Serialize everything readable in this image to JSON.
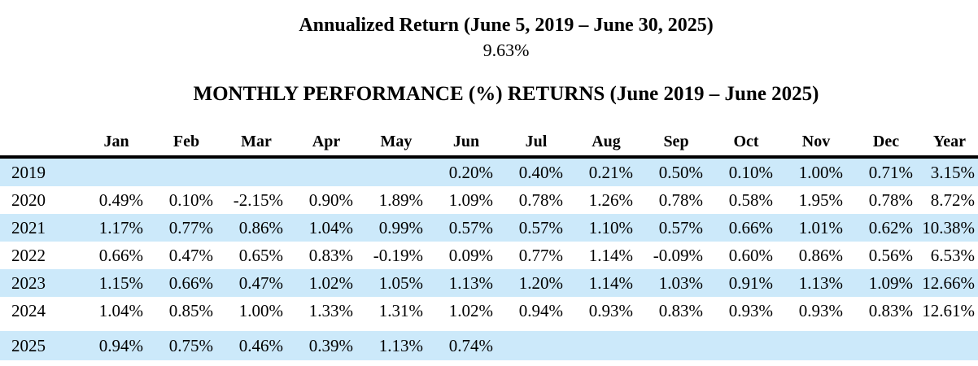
{
  "header": {
    "annualized_title": "Annualized Return (June 5, 2019 – June 30, 2025)",
    "annualized_value": "9.63%",
    "table_title": "MONTHLY PERFORMANCE (%) RETURNS (June 2019 – June 2025)"
  },
  "colors": {
    "row_highlight": "#cce9fa",
    "header_rule": "#000000"
  },
  "chart_data": {
    "type": "table",
    "columns": [
      "Jan",
      "Feb",
      "Mar",
      "Apr",
      "May",
      "Jun",
      "Jul",
      "Aug",
      "Sep",
      "Oct",
      "Nov",
      "Dec",
      "Year"
    ],
    "rows": [
      {
        "year": "2019",
        "values": [
          "",
          "",
          "",
          "",
          "",
          "0.20%",
          "0.40%",
          "0.21%",
          "0.50%",
          "0.10%",
          "1.00%",
          "0.71%",
          "3.15%"
        ]
      },
      {
        "year": "2020",
        "values": [
          "0.49%",
          "0.10%",
          "-2.15%",
          "0.90%",
          "1.89%",
          "1.09%",
          "0.78%",
          "1.26%",
          "0.78%",
          "0.58%",
          "1.95%",
          "0.78%",
          "8.72%"
        ]
      },
      {
        "year": "2021",
        "values": [
          "1.17%",
          "0.77%",
          "0.86%",
          "1.04%",
          "0.99%",
          "0.57%",
          "0.57%",
          "1.10%",
          "0.57%",
          "0.66%",
          "1.01%",
          "0.62%",
          "10.38%"
        ]
      },
      {
        "year": "2022",
        "values": [
          "0.66%",
          "0.47%",
          "0.65%",
          "0.83%",
          "-0.19%",
          "0.09%",
          "0.77%",
          "1.14%",
          "-0.09%",
          "0.60%",
          "0.86%",
          "0.56%",
          "6.53%"
        ]
      },
      {
        "year": "2023",
        "values": [
          "1.15%",
          "0.66%",
          "0.47%",
          "1.02%",
          "1.05%",
          "1.13%",
          "1.20%",
          "1.14%",
          "1.03%",
          "0.91%",
          "1.13%",
          "1.09%",
          "12.66%"
        ]
      },
      {
        "year": "2024",
        "values": [
          "1.04%",
          "0.85%",
          "1.00%",
          "1.33%",
          "1.31%",
          "1.02%",
          "0.94%",
          "0.93%",
          "0.83%",
          "0.93%",
          "0.93%",
          "0.83%",
          "12.61%"
        ]
      },
      {
        "year": "2025",
        "gap_before": true,
        "values": [
          "0.94%",
          "0.75%",
          "0.46%",
          "0.39%",
          "1.13%",
          "0.74%",
          "",
          "",
          "",
          "",
          "",
          "",
          ""
        ]
      }
    ]
  }
}
